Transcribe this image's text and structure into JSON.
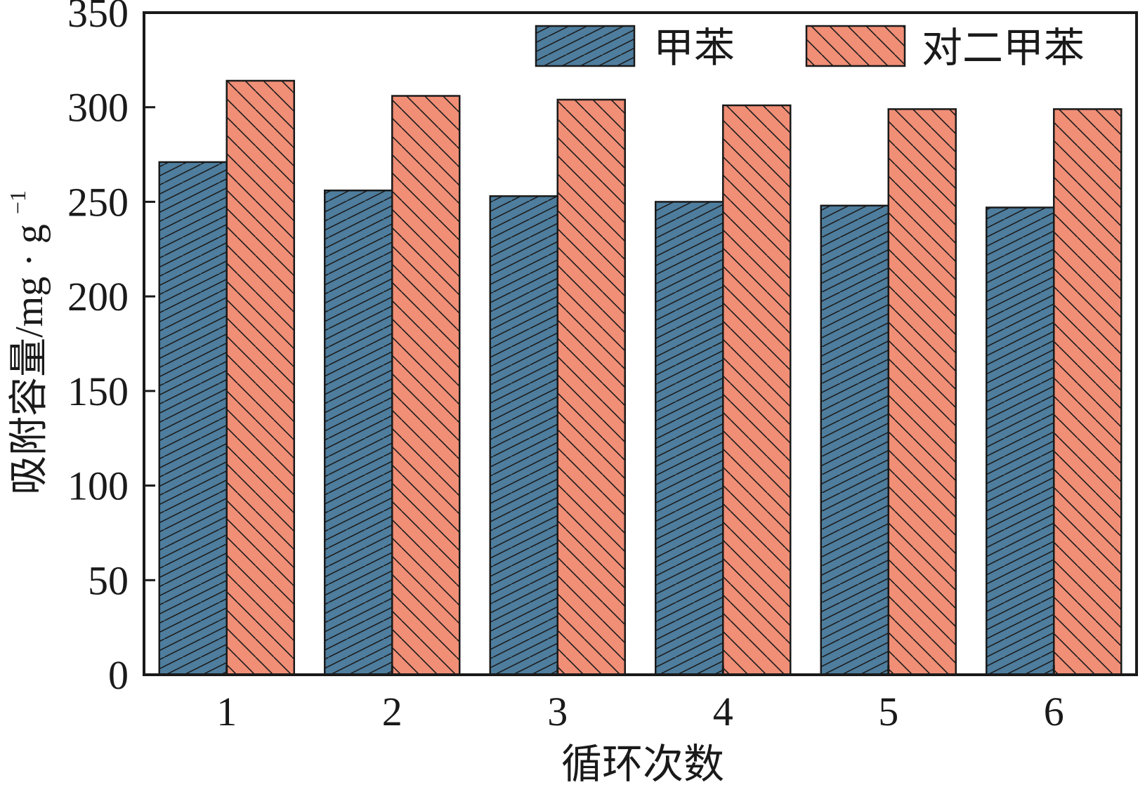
{
  "chart_data": {
    "type": "bar",
    "xlabel": "循环次数",
    "ylabel_main": "吸附容量/mg · g",
    "ylabel_sup": "−1",
    "categories": [
      "1",
      "2",
      "3",
      "4",
      "5",
      "6"
    ],
    "ylim": [
      0,
      350
    ],
    "yticks": [
      "0",
      "50",
      "100",
      "150",
      "200",
      "250",
      "300",
      "350"
    ],
    "series": [
      {
        "name": "甲苯",
        "values": [
          271,
          256,
          253,
          250,
          248,
          247
        ],
        "color": "#4e7d9d",
        "hatch": "forward-diagonal"
      },
      {
        "name": "对二甲苯",
        "values": [
          314,
          306,
          304,
          301,
          299,
          299
        ],
        "color": "#f08e76",
        "hatch": "back-diagonal"
      }
    ],
    "legend": "top-right",
    "grid": false
  }
}
